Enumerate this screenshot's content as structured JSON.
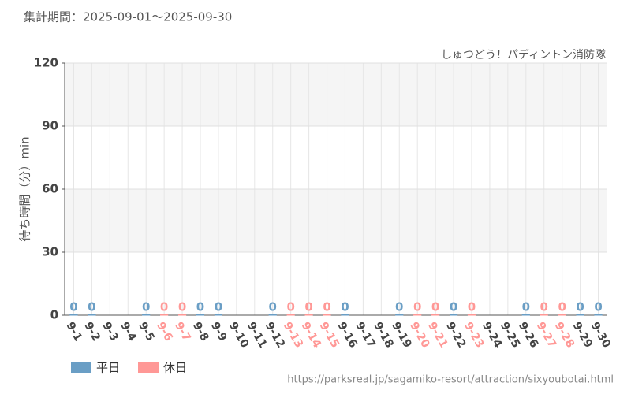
{
  "chart_data": {
    "type": "bar",
    "title": "集計期間：2025-09-01～2025-09-30",
    "subtitle": "しゅつどう！パディントン消防隊",
    "y_label": "待ち時間（分）min",
    "source": "https://parksreal.jp/sagamiko-resort/attraction/sixyoubotai.html",
    "categories": [
      "9-1",
      "9-2",
      "9-3",
      "9-4",
      "9-5",
      "9-6",
      "9-7",
      "9-8",
      "9-9",
      "9-10",
      "9-11",
      "9-12",
      "9-13",
      "9-14",
      "9-15",
      "9-16",
      "9-17",
      "9-18",
      "9-19",
      "9-20",
      "9-21",
      "9-22",
      "9-23",
      "9-24",
      "9-25",
      "9-26",
      "9-27",
      "9-28",
      "9-29",
      "9-30"
    ],
    "series": [
      {
        "name": "平日",
        "color": "#6a9ec5",
        "values": [
          0,
          0,
          null,
          null,
          0,
          null,
          null,
          0,
          0,
          null,
          null,
          0,
          null,
          null,
          null,
          0,
          null,
          null,
          0,
          null,
          null,
          0,
          null,
          null,
          null,
          0,
          null,
          null,
          0,
          0
        ]
      },
      {
        "name": "休日",
        "color": "#ff9896",
        "values": [
          null,
          null,
          null,
          null,
          null,
          0,
          0,
          null,
          null,
          null,
          null,
          null,
          0,
          0,
          0,
          null,
          null,
          null,
          null,
          0,
          0,
          null,
          0,
          null,
          null,
          null,
          0,
          0,
          null,
          null
        ]
      }
    ],
    "ylim": [
      0,
      120
    ],
    "yticks": [
      0,
      30,
      60,
      90,
      120
    ],
    "grid": true
  }
}
